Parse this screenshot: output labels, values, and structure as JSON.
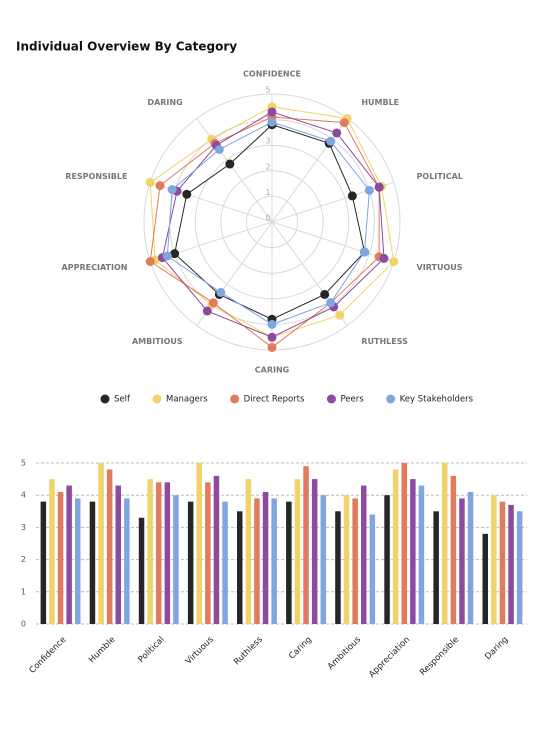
{
  "title": "Individual Overview By Category",
  "chart_data": [
    {
      "type": "radar",
      "categories": [
        "CONFIDENCE",
        "HUMBLE",
        "POLITICAL",
        "VIRTUOUS",
        "RUTHLESS",
        "CARING",
        "AMBITIOUS",
        "APPRECIATION",
        "RESPONSIBLE",
        "DARING"
      ],
      "rlim": [
        0,
        5
      ],
      "rticks": [
        0,
        1,
        2,
        3,
        4,
        5
      ],
      "grid": true,
      "legend": "bottom",
      "series": [
        {
          "name": "Self",
          "color": "#262626",
          "values": [
            3.8,
            3.8,
            3.3,
            3.8,
            3.5,
            3.8,
            3.5,
            4.0,
            3.5,
            2.8
          ]
        },
        {
          "name": "Managers",
          "color": "#f2d26b",
          "values": [
            4.5,
            5.0,
            4.5,
            5.0,
            4.5,
            4.5,
            4.0,
            4.8,
            5.0,
            4.0
          ]
        },
        {
          "name": "Direct Reports",
          "color": "#e07b5e",
          "values": [
            4.1,
            4.8,
            4.4,
            4.4,
            3.9,
            4.9,
            3.9,
            5.0,
            4.6,
            3.8
          ]
        },
        {
          "name": "Peers",
          "color": "#8e4aa0",
          "values": [
            4.3,
            4.3,
            4.4,
            4.6,
            4.1,
            4.5,
            4.3,
            4.5,
            3.9,
            3.7
          ]
        },
        {
          "name": "Key Stakeholders",
          "color": "#7fa6e0",
          "values": [
            3.9,
            3.9,
            4.0,
            3.8,
            3.9,
            4.0,
            3.4,
            4.3,
            4.1,
            3.5
          ]
        }
      ]
    },
    {
      "type": "bar",
      "categories": [
        "Confidence",
        "Humble",
        "Political",
        "Virtuous",
        "Ruthless",
        "Caring",
        "Ambitious",
        "Appreciation",
        "Responsible",
        "Daring"
      ],
      "ylim": [
        0,
        5
      ],
      "yticks": [
        0,
        1,
        2,
        3,
        4,
        5
      ],
      "grid": true,
      "series": [
        {
          "color": "#262626",
          "values": [
            3.8,
            3.8,
            3.3,
            3.8,
            3.5,
            3.8,
            3.5,
            4.0,
            3.5,
            2.8
          ]
        },
        {
          "color": "#f2d26b",
          "values": [
            4.5,
            5.0,
            4.5,
            5.0,
            4.5,
            4.5,
            4.0,
            4.8,
            5.0,
            4.0
          ]
        },
        {
          "color": "#e07b5e",
          "values": [
            4.1,
            4.8,
            4.4,
            4.4,
            3.9,
            4.9,
            3.9,
            5.0,
            4.6,
            3.8
          ]
        },
        {
          "color": "#8e4aa0",
          "values": [
            4.3,
            4.3,
            4.4,
            4.6,
            4.1,
            4.5,
            4.3,
            4.5,
            3.9,
            3.7
          ]
        },
        {
          "color": "#7fa6e0",
          "values": [
            3.9,
            3.9,
            4.0,
            3.8,
            3.9,
            4.0,
            3.4,
            4.3,
            4.1,
            3.5
          ]
        }
      ]
    }
  ]
}
